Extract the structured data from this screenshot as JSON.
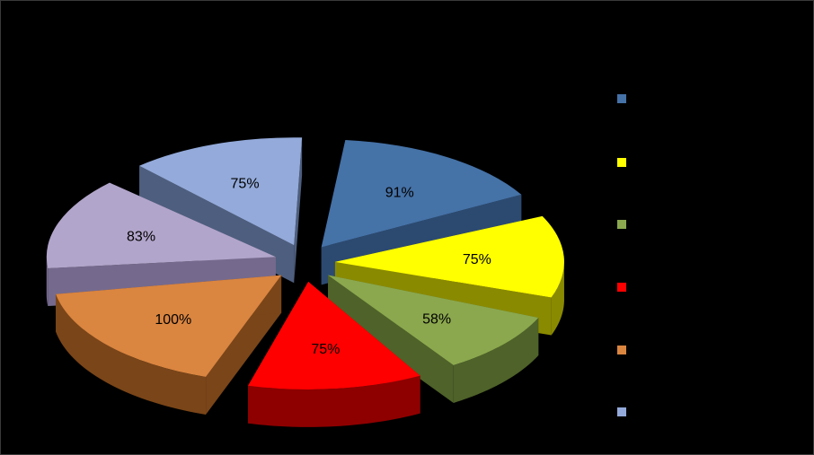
{
  "chart_data": {
    "type": "pie",
    "style": "3d-exploded",
    "title": "",
    "legend_position": "right",
    "slices": [
      {
        "name": "",
        "label": "91%",
        "value": 91,
        "color": "#4572A7",
        "side": "#2C4A70"
      },
      {
        "name": "",
        "label": "75%",
        "value": 75,
        "color": "#FFFF00",
        "side": "#8A8A00"
      },
      {
        "name": "",
        "label": "58%",
        "value": 58,
        "color": "#8BA84E",
        "side": "#4E6229"
      },
      {
        "name": "",
        "label": "75%",
        "value": 75,
        "color": "#FF0000",
        "side": "#8E0000"
      },
      {
        "name": "",
        "label": "100%",
        "value": 100,
        "color": "#DA8540",
        "side": "#7A4518"
      },
      {
        "name": "",
        "label": "83%",
        "value": 83,
        "color": "#B2A5CB",
        "side": "#756A8E"
      },
      {
        "name": "",
        "label": "75%",
        "value": 75,
        "color": "#93AADA",
        "side": "#4E5E7E"
      }
    ]
  }
}
